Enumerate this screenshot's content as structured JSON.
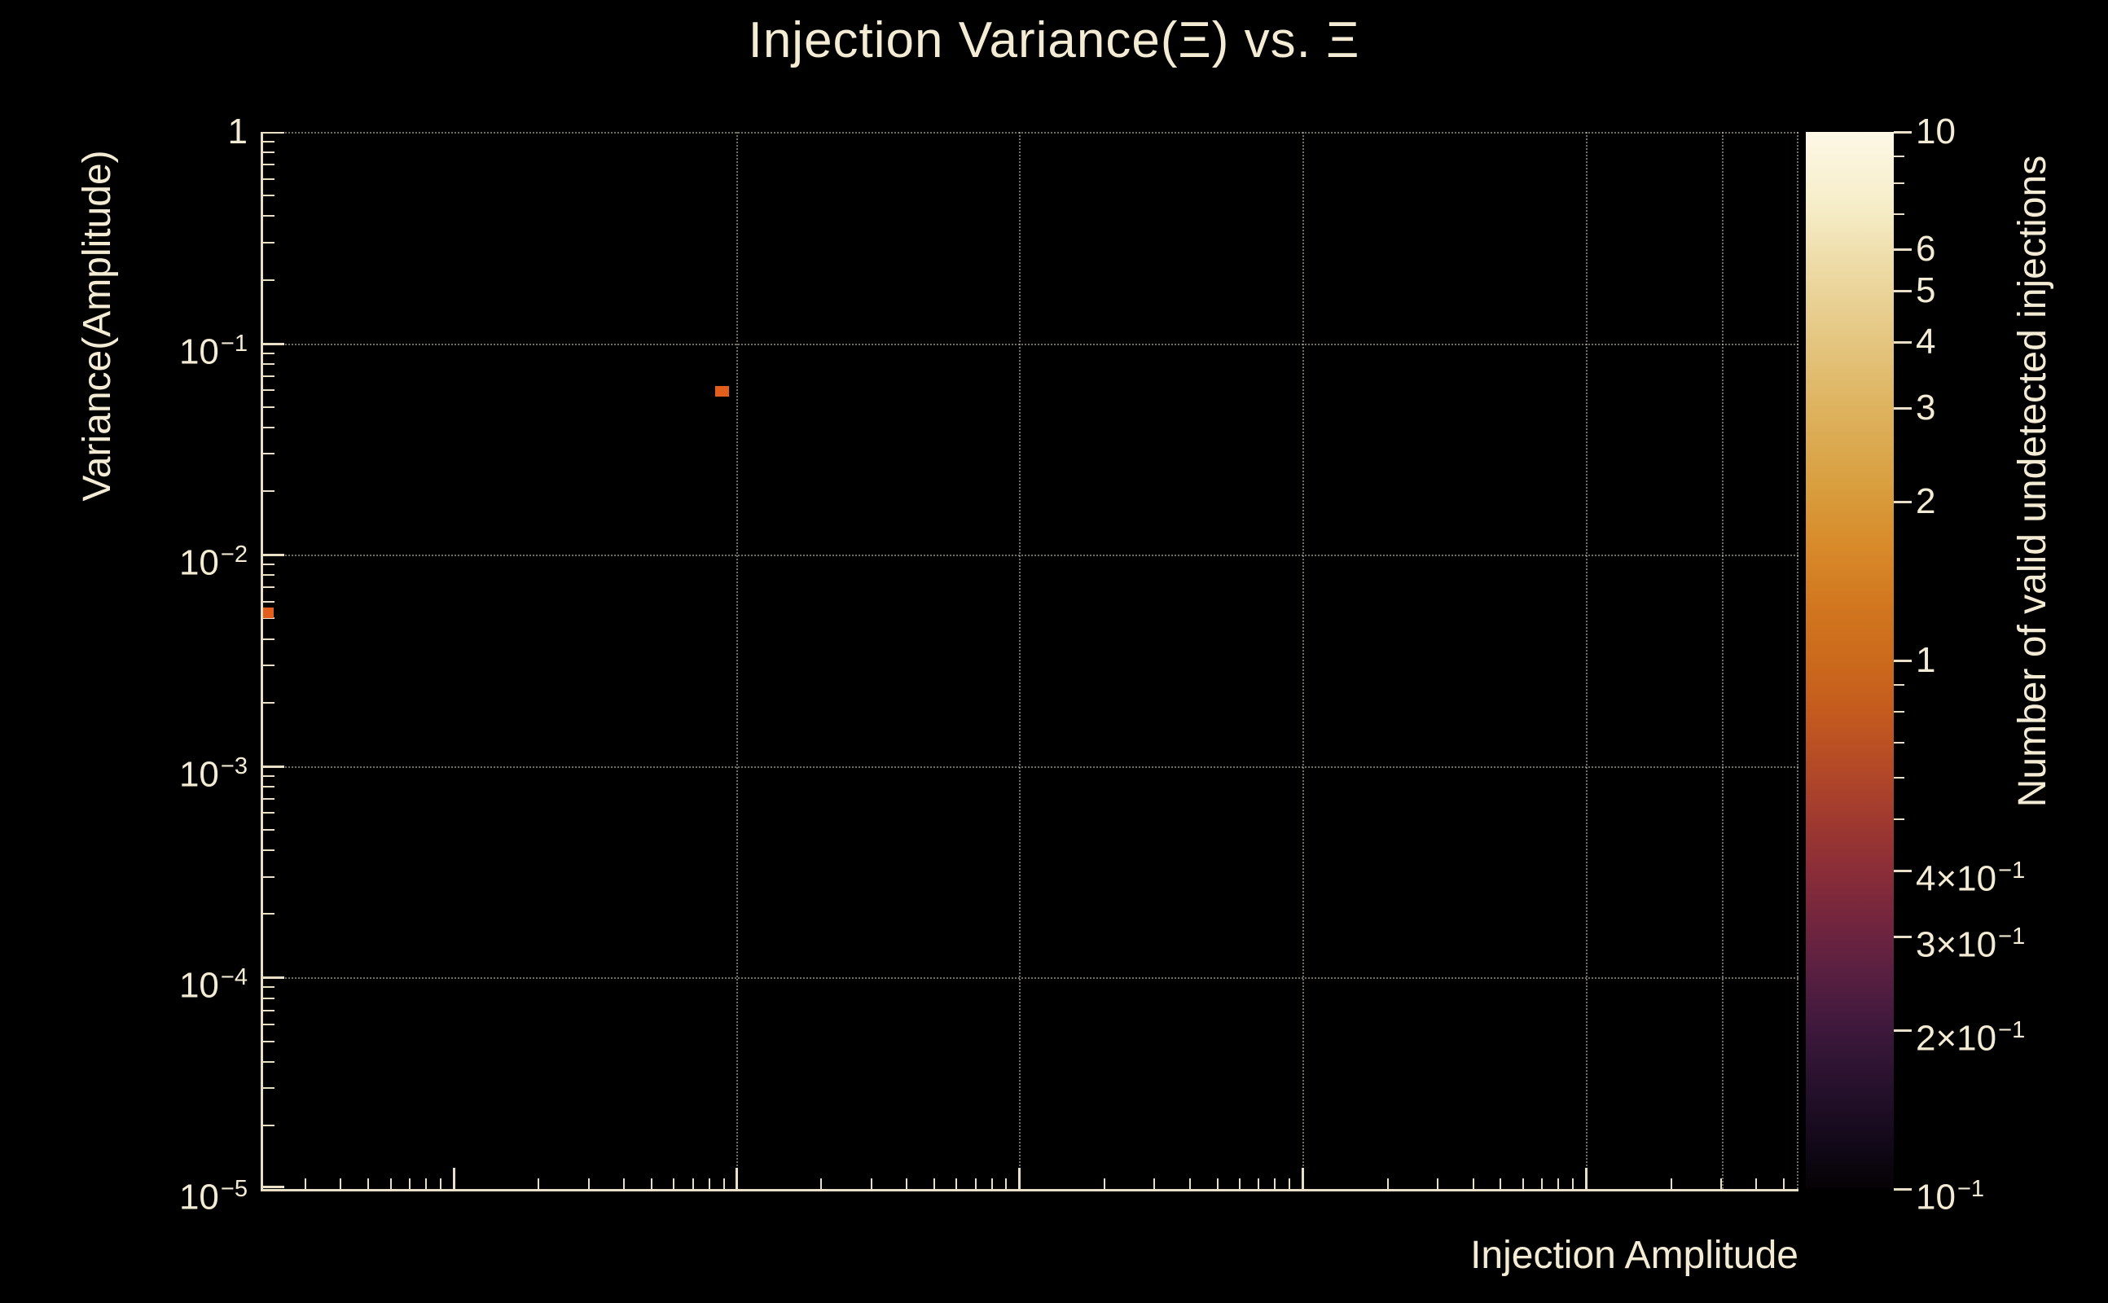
{
  "title": "Injection Variance(Ξ) vs. Ξ",
  "x_axis": {
    "label": "Injection Amplitude"
  },
  "y_axis": {
    "label": "Variance(Amplitude)",
    "tick_labels": [
      "1",
      "10^−1",
      "10^−2",
      "10^−3",
      "10^−4",
      "10^−5"
    ]
  },
  "colorbar": {
    "label": "Number of valid undetected injections",
    "tick_labels": [
      "10",
      "6",
      "5",
      "4",
      "3",
      "2",
      "1",
      "4×10^−1",
      "3×10^−1",
      "2×10^−1",
      "10^−1"
    ]
  },
  "colors": {
    "background": "#000000",
    "foreground": "#f3ebd3",
    "axis": "#e8dfc6",
    "grid": "#e2d9c4",
    "point": "#e25e1c"
  },
  "chart_data": {
    "type": "scatter",
    "title": "Injection Variance(Ξ) vs. Ξ",
    "xlabel": "Injection Amplitude",
    "ylabel": "Variance(Amplitude)",
    "x_scale": "log",
    "x_tick_labels": [],
    "y_scale": "log",
    "ylim": [
      1e-05,
      1
    ],
    "y_major_ticks": [
      1,
      0.1,
      0.01,
      0.001,
      0.0001,
      1e-05
    ],
    "grid": "dotted gridlines at major ticks",
    "legend": "none",
    "points": [
      {
        "x_frac": 0.0022,
        "y": 0.0053,
        "z_approx": 1,
        "color": "#e25e1c"
      },
      {
        "x_frac": 0.299,
        "y": 0.0595,
        "z_approx": 1,
        "color": "#e25e1c"
      }
    ],
    "colorbar": {
      "label": "Number of valid undetected injections",
      "scale": "log",
      "zlim": [
        0.1,
        10
      ],
      "labeled_ticks": [
        10,
        6,
        5,
        4,
        3,
        2,
        1,
        0.4,
        0.3,
        0.2,
        0.1
      ],
      "minor_ticks": [
        9,
        8,
        7,
        0.9,
        0.8,
        0.7,
        0.6,
        0.5
      ],
      "colormap_stops": [
        [
          0,
          "#fdf8e7"
        ],
        [
          0.07,
          "#f6edc8"
        ],
        [
          0.13,
          "#eddaa4"
        ],
        [
          0.2,
          "#e4c57f"
        ],
        [
          0.26,
          "#deb35f"
        ],
        [
          0.33,
          "#d9a041"
        ],
        [
          0.39,
          "#d88b2a"
        ],
        [
          0.45,
          "#d1761f"
        ],
        [
          0.5,
          "#cb6a1c"
        ],
        [
          0.55,
          "#c45a1e"
        ],
        [
          0.6,
          "#b44a26"
        ],
        [
          0.65,
          "#a03a30"
        ],
        [
          0.7,
          "#8a2d38"
        ],
        [
          0.75,
          "#71253f"
        ],
        [
          0.8,
          "#571f41"
        ],
        [
          0.85,
          "#3d183c"
        ],
        [
          0.9,
          "#27112d"
        ],
        [
          0.96,
          "#110818"
        ],
        [
          1,
          "#050204"
        ]
      ]
    }
  }
}
